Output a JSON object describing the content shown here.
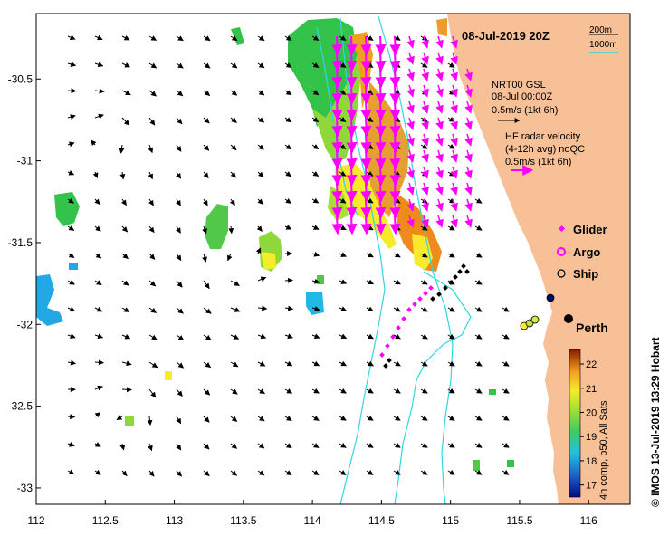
{
  "map": {
    "timestamp": "08-Jul-2019 20Z",
    "x_ticks": [
      "112",
      "112.5",
      "113",
      "113.5",
      "114",
      "114.5",
      "115",
      "115.5",
      "116"
    ],
    "y_ticks": [
      "-30.5",
      "-31",
      "-31.5",
      "-32",
      "-32.5",
      "-33"
    ],
    "lon_range": [
      112,
      116.3
    ],
    "lat_range": [
      -33.1,
      -30.1
    ],
    "land_color": "#f7c096",
    "contour_color": "#33d6e0",
    "place": "Perth",
    "credit": "© IMOS 13-Jul-2019 13:29 Hobart"
  },
  "isobath_legend": {
    "line1": "200m",
    "line2": "1000m"
  },
  "gsl_legend": {
    "line1": "NRT00 GSL",
    "line2": "08-Jul 00:00Z",
    "line3": "0.5m/s (1kt 6h)"
  },
  "hf_legend": {
    "line1": "HF radar velocity",
    "line2": "(4-12h avg) noQC",
    "line3": "0.5m/s (1kt 6h)",
    "arrow_color": "#ff00ff"
  },
  "platforms": {
    "glider": "Glider",
    "argo": "Argo",
    "ship": "Ship"
  },
  "colorbar": {
    "ticks": [
      "22",
      "21",
      "20",
      "19",
      "18",
      "17"
    ],
    "label": "4h comp, p50, All Sats",
    "range": [
      16.5,
      22.6
    ]
  }
}
